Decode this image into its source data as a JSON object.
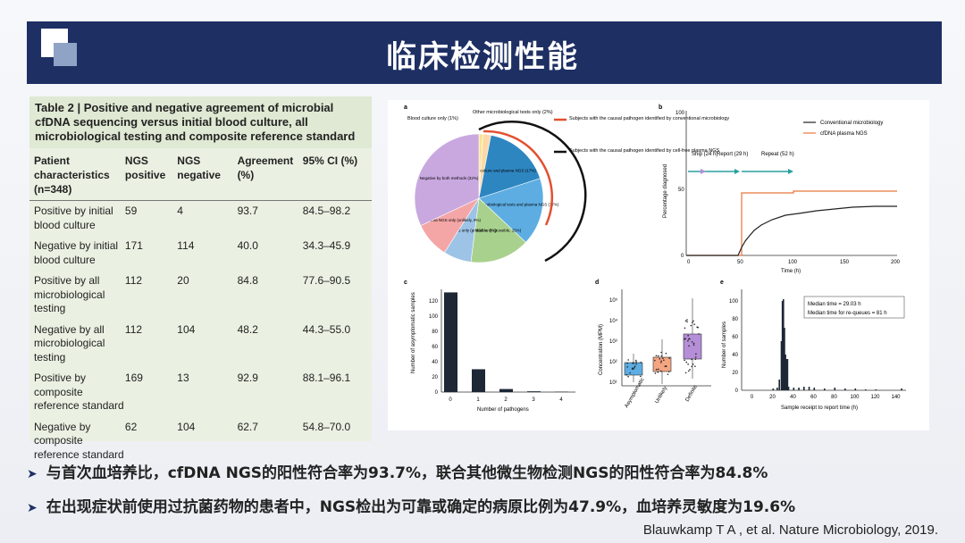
{
  "title": "临床检测性能",
  "table": {
    "caption": "Table 2 | Positive and negative agreement of microbial cfDNA sequencing versus initial blood culture, all microbiological testing and composite reference standard",
    "headers": [
      "Patient characteristics (n=348)",
      "NGS positive",
      "NGS negative",
      "Agreement (%)",
      "95% CI (%)"
    ],
    "rows": [
      [
        "Positive by initial blood culture",
        "59",
        "4",
        "93.7",
        "84.5–98.2"
      ],
      [
        "Negative by initial blood culture",
        "171",
        "114",
        "40.0",
        "34.3–45.9"
      ],
      [
        "Positive by all microbiological testing",
        "112",
        "20",
        "84.8",
        "77.6–90.5"
      ],
      [
        "Negative by all microbiological testing",
        "112",
        "104",
        "48.2",
        "44.3–55.0"
      ],
      [
        "Positive by composite reference standard",
        "169",
        "13",
        "92.9",
        "88.1–96.1"
      ],
      [
        "Negative by composite reference standard",
        "62",
        "104",
        "62.7",
        "54.8–70.0"
      ]
    ]
  },
  "figure": {
    "pie": {
      "panel": "a",
      "top_labels": [
        "Blood culture only (1%)",
        "Other microbiological tests only (2%)"
      ],
      "legend": [
        "Subjects with the causal pathogen identified by conventional microbiology",
        "Subjects with the causal pathogen identified by cell-free plasma NGS"
      ],
      "slices": [
        {
          "label": "Blood culture only",
          "pct": 1,
          "color": "#f6e58d"
        },
        {
          "label": "Other microbiological tests only",
          "pct": 2,
          "color": "#ffd8a8"
        },
        {
          "label": "Blood culture and plasma NGS (17%)",
          "pct": 17,
          "color": "#2e86c1"
        },
        {
          "label": "Other microbiological tests and plasma NGS (17%)",
          "pct": 17,
          "color": "#5dade2"
        },
        {
          "label": "Plasma NGS only (possible, 15%)",
          "pct": 15,
          "color": "#a9d18e"
        },
        {
          "label": "Plasma NGS only (probable, 7%)",
          "pct": 7,
          "color": "#9dc3e6"
        },
        {
          "label": "Plasma NGS only (unlikely, 9%)",
          "pct": 9,
          "color": "#f4a6a6"
        },
        {
          "label": "Negative by both methods (32%)",
          "pct": 32,
          "color": "#c9a8e0"
        }
      ]
    },
    "line": {
      "panel": "b",
      "legend": [
        "Conventional microbiology",
        "cfDNA plasma NGS"
      ],
      "ylabel": "Percentage diagnosed",
      "xlabel": "Time (h)",
      "xticks": [
        "0",
        "50",
        "100",
        "150",
        "200"
      ],
      "yticks": [
        "0",
        "50",
        "100"
      ],
      "annotations": [
        "Ship (24 h)",
        "Report (29 h)",
        "Repeat (52 h)"
      ]
    },
    "bar": {
      "panel": "c",
      "ylabel": "Number of asymptomatic samples",
      "xlabel": "Number of pathogens",
      "yticks": [
        "0",
        "20",
        "40",
        "60",
        "80",
        "100",
        "120"
      ]
    },
    "box": {
      "panel": "d",
      "ylabel": "Concentration (MPM)",
      "categories": [
        "Asymptomatic",
        "Unlikely",
        "Definite"
      ],
      "yticks": [
        "10¹",
        "10²",
        "10³",
        "10⁴",
        "10⁵"
      ]
    },
    "hist": {
      "panel": "e",
      "ylabel": "Number of samples",
      "xlabel": "Sample receipt to report time (h)",
      "xticks": [
        "0",
        "20",
        "40",
        "60",
        "80",
        "100",
        "120",
        "140"
      ],
      "yticks": [
        "0",
        "20",
        "40",
        "60",
        "80",
        "100"
      ],
      "notes": [
        "Median time = 29.03 h",
        "Median time for re-queues = 81 h"
      ]
    }
  },
  "chart_data": [
    {
      "type": "bar",
      "categories": [
        "0",
        "1",
        "2",
        "3",
        "4"
      ],
      "values": [
        131,
        30,
        4,
        1,
        0.5
      ],
      "xlabel": "Number of pathogens",
      "ylabel": "Number of asymptomatic samples",
      "ylim": [
        0,
        135
      ]
    },
    {
      "type": "bar",
      "categories": [
        "20",
        "24",
        "26",
        "28",
        "29",
        "30",
        "31",
        "32",
        "33",
        "34",
        "35",
        "40",
        "45",
        "50",
        "55",
        "60",
        "70",
        "80",
        "90",
        "100",
        "110",
        "120",
        "145"
      ],
      "values": [
        2,
        3,
        12,
        55,
        100,
        102,
        70,
        40,
        35,
        35,
        4,
        3,
        3,
        4,
        4,
        3,
        2,
        3,
        2,
        2,
        1,
        1,
        2
      ],
      "xlabel": "Sample receipt to report time (h)",
      "ylabel": "Number of samples",
      "ylim": [
        0,
        105
      ]
    }
  ],
  "bullets": [
    "与首次血培养比，cfDNA NGS的阳性符合率为93.7%，联合其他微生物检测NGS的阳性符合率为84.8%",
    "在出现症状前使用过抗菌药物的患者中，NGS检出为可靠或确定的病原比例为47.9%，血培养灵敏度为19.6%"
  ],
  "citation": "Blauwkamp T A , et al. Nature Microbiology, 2019."
}
